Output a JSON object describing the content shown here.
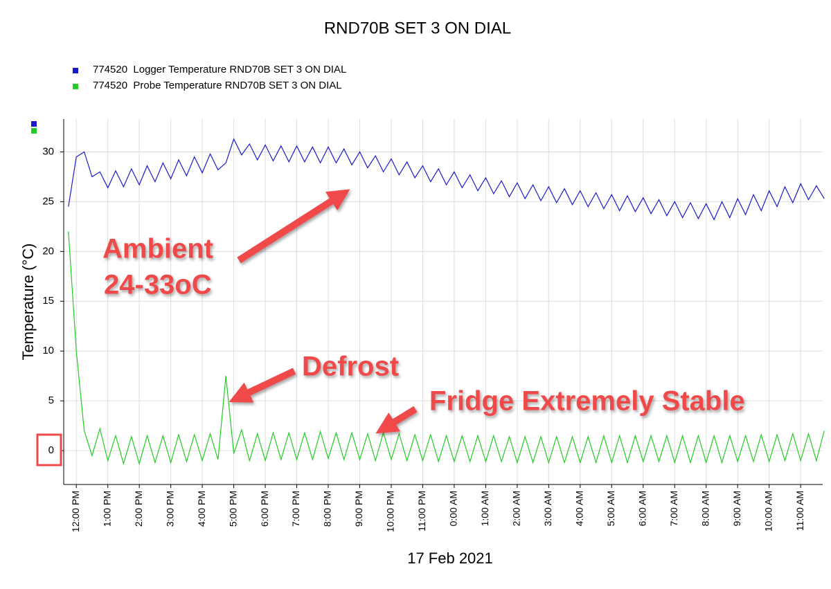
{
  "chart_data": {
    "type": "line",
    "title": "RND70B SET 3 ON DIAL",
    "xlabel": "17 Feb 2021",
    "ylabel": "Temperature (°C)",
    "annotations": [
      "Ambient",
      "24-33oC",
      "Defrost",
      "Fridge Extremely Stable"
    ],
    "xlim": [
      -0.4,
      23.7
    ],
    "ylim": [
      -3.4,
      33.3
    ],
    "yticks": [
      0,
      5,
      10,
      15,
      20,
      25,
      30
    ],
    "xticks": [
      {
        "value": 0,
        "label": "12:00 PM"
      },
      {
        "value": 1,
        "label": "1:00 PM"
      },
      {
        "value": 2,
        "label": "2:00 PM"
      },
      {
        "value": 3,
        "label": "3:00 PM"
      },
      {
        "value": 4,
        "label": "4:00 PM"
      },
      {
        "value": 5,
        "label": "5:00 PM"
      },
      {
        "value": 6,
        "label": "6:00 PM"
      },
      {
        "value": 7,
        "label": "7:00 PM"
      },
      {
        "value": 8,
        "label": "8:00 PM"
      },
      {
        "value": 9,
        "label": "9:00 PM"
      },
      {
        "value": 10,
        "label": "10:00 PM"
      },
      {
        "value": 11,
        "label": "11:00 PM"
      },
      {
        "value": 12,
        "label": "0:00 AM"
      },
      {
        "value": 13,
        "label": "1:00 AM"
      },
      {
        "value": 14,
        "label": "2:00 AM"
      },
      {
        "value": 15,
        "label": "3:00 AM"
      },
      {
        "value": 16,
        "label": "4:00 AM"
      },
      {
        "value": 17,
        "label": "5:00 AM"
      },
      {
        "value": 18,
        "label": "6:00 AM"
      },
      {
        "value": 19,
        "label": "7:00 AM"
      },
      {
        "value": 20,
        "label": "8:00 AM"
      },
      {
        "value": 21,
        "label": "9:00 AM"
      },
      {
        "value": 22,
        "label": "10:00 AM"
      },
      {
        "value": 23,
        "label": "11:00 AM"
      }
    ],
    "grid": true,
    "x": [
      -0.25,
      0,
      0.25,
      0.5,
      0.75,
      1,
      1.25,
      1.5,
      1.75,
      2,
      2.25,
      2.5,
      2.75,
      3,
      3.25,
      3.5,
      3.75,
      4,
      4.25,
      4.5,
      4.75,
      5,
      5.25,
      5.5,
      5.75,
      6,
      6.25,
      6.5,
      6.75,
      7,
      7.25,
      7.5,
      7.75,
      8,
      8.25,
      8.5,
      8.75,
      9,
      9.25,
      9.5,
      9.75,
      10,
      10.25,
      10.5,
      10.75,
      11,
      11.25,
      11.5,
      11.75,
      12,
      12.25,
      12.5,
      12.75,
      13,
      13.25,
      13.5,
      13.75,
      14,
      14.25,
      14.5,
      14.75,
      15,
      15.25,
      15.5,
      15.75,
      16,
      16.25,
      16.5,
      16.75,
      17,
      17.25,
      17.5,
      17.75,
      18,
      18.25,
      18.5,
      18.75,
      19,
      19.25,
      19.5,
      19.75,
      20,
      20.25,
      20.5,
      20.75,
      21,
      21.25,
      21.5,
      21.75,
      22,
      22.25,
      22.5,
      22.75,
      23,
      23.25,
      23.5,
      23.75
    ],
    "series": [
      {
        "name": "774520  Logger Temperature RND70B SET 3 ON DIAL",
        "color": "#1a1acc",
        "values": [
          24.5,
          29.5,
          30,
          27.5,
          28.0,
          26.4,
          28.1,
          26.5,
          28.3,
          26.7,
          28.6,
          27.0,
          28.9,
          27.3,
          29.2,
          27.6,
          29.5,
          27.9,
          29.8,
          28.2,
          28.9,
          31.3,
          29.7,
          30.8,
          29.2,
          30.7,
          29.1,
          30.6,
          29.0,
          30.6,
          29.0,
          30.5,
          28.9,
          30.5,
          28.9,
          30.3,
          28.7,
          30.0,
          28.4,
          29.6,
          28.0,
          29.3,
          27.7,
          29.0,
          27.4,
          28.6,
          27.0,
          28.3,
          26.7,
          28.0,
          26.4,
          27.7,
          26.1,
          27.4,
          25.8,
          27.1,
          25.5,
          26.9,
          25.3,
          26.7,
          25.1,
          26.5,
          24.9,
          26.3,
          24.7,
          26.1,
          24.5,
          25.9,
          24.3,
          25.7,
          24.1,
          25.6,
          24.0,
          25.4,
          23.8,
          25.2,
          23.6,
          25.0,
          23.4,
          24.9,
          23.3,
          24.8,
          23.2,
          25.0,
          23.4,
          25.3,
          23.7,
          25.7,
          24.1,
          26.1,
          24.5,
          26.5,
          24.9,
          26.8,
          25.2,
          26.6,
          25.3
        ]
      },
      {
        "name": "774520  Probe Temperature RND70B SET 3 ON DIAL",
        "color": "#22cc22",
        "values": [
          22,
          10,
          2,
          -0.5,
          2.2,
          -1.0,
          1.5,
          -1.3,
          1.4,
          -1.3,
          1.5,
          -1.2,
          1.5,
          -1.2,
          1.6,
          -1.1,
          1.6,
          -1.0,
          1.7,
          -0.9,
          7.5,
          -0.3,
          2.1,
          -1.0,
          1.7,
          -1.0,
          1.8,
          -0.9,
          1.8,
          -0.9,
          1.8,
          -0.9,
          1.9,
          -0.8,
          1.8,
          -0.9,
          1.8,
          -0.9,
          1.7,
          -1.0,
          1.8,
          -0.9,
          1.7,
          -1.0,
          1.6,
          -1.0,
          1.6,
          -1.1,
          1.5,
          -1.1,
          1.5,
          -1.1,
          1.5,
          -1.1,
          1.5,
          -1.1,
          1.4,
          -1.2,
          1.4,
          -1.2,
          1.4,
          -1.2,
          1.4,
          -1.2,
          1.4,
          -1.2,
          1.4,
          -1.2,
          1.5,
          -1.2,
          1.5,
          -1.2,
          1.5,
          -1.1,
          1.5,
          -1.1,
          1.5,
          -1.2,
          1.5,
          -1.2,
          1.5,
          -1.2,
          1.5,
          -1.2,
          1.5,
          -1.1,
          1.5,
          -1.1,
          1.6,
          -1.1,
          1.6,
          -1.0,
          1.7,
          -1.0,
          1.7,
          -1.0,
          2.0
        ]
      }
    ]
  }
}
